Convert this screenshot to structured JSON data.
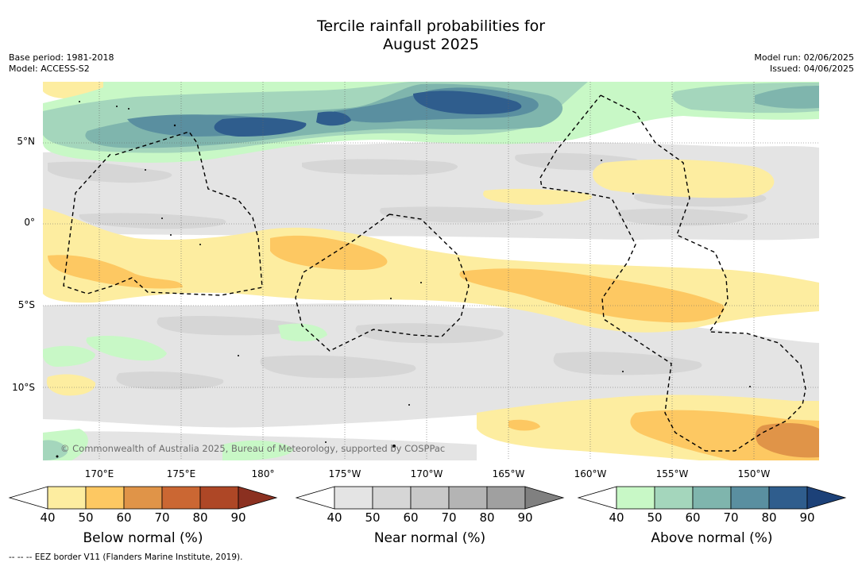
{
  "title_line1": "Tercile rainfall probabilities for",
  "title_line2": "August 2025",
  "base_period": "Base period: 1981-2018",
  "model": "Model: ACCESS-S2",
  "model_run": "Model run: 02/06/2025",
  "issued": "Issued: 04/06/2025",
  "copyright": "© Commonwealth of Australia 2025, Bureau of Meteorology, supported by COSPPac",
  "footnote": "--  --  -- EEZ border V11 (Flanders Marine Institute, 2019).",
  "latitude_labels": [
    "5°N",
    "0°",
    "5°S",
    "10°S"
  ],
  "longitude_labels": [
    "170°E",
    "175°E",
    "180°",
    "175°W",
    "170°W",
    "165°W",
    "160°W",
    "155°W",
    "150°W"
  ],
  "colorbars": [
    {
      "title": "Below normal (%)",
      "ticks": [
        "40",
        "50",
        "60",
        "70",
        "80",
        "90"
      ],
      "colors": [
        "#ffffff",
        "#fdeda0",
        "#fdc862",
        "#e09448",
        "#cb6733",
        "#ae4726",
        "#8b3020"
      ]
    },
    {
      "title": "Near normal (%)",
      "ticks": [
        "40",
        "50",
        "60",
        "70",
        "80",
        "90"
      ],
      "colors": [
        "#ffffff",
        "#e4e4e4",
        "#d6d6d6",
        "#c8c8c8",
        "#b4b4b4",
        "#a0a0a0",
        "#808080"
      ]
    },
    {
      "title": "Above normal (%)",
      "ticks": [
        "40",
        "50",
        "60",
        "70",
        "80",
        "90"
      ],
      "colors": [
        "#ffffff",
        "#c8f8c6",
        "#a4d6bc",
        "#7fb5ad",
        "#5a8fa0",
        "#2f5d8d",
        "#1c4178"
      ]
    }
  ],
  "colors": {
    "below_50": "#fdeda0",
    "below_60": "#fdc862",
    "below_70": "#e09448",
    "near_50": "#e4e4e4",
    "near_60": "#d6d6d6",
    "above_50": "#c8f8c6",
    "above_60": "#a4d6bc",
    "above_70": "#7fb5ad",
    "above_80": "#5a8fa0",
    "above_90": "#2f5d8d"
  }
}
